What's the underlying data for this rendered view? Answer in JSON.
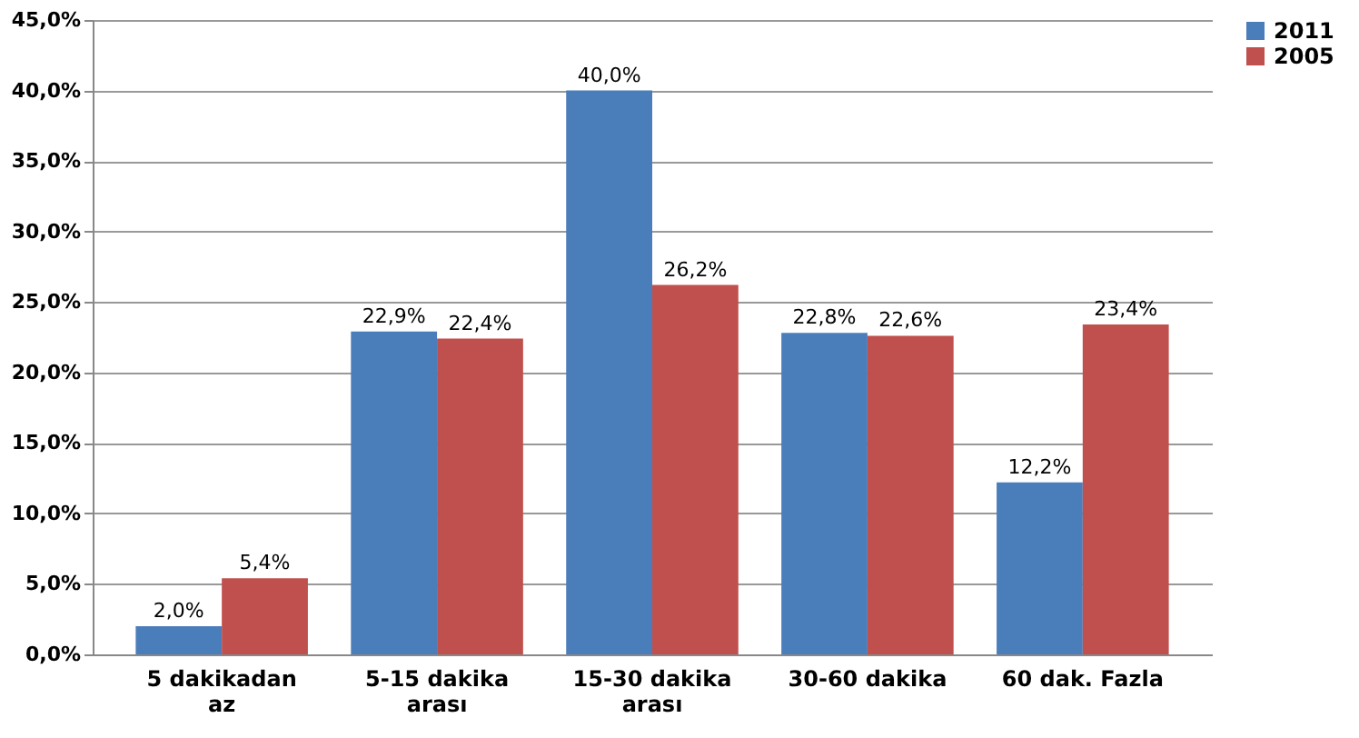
{
  "chart_data": {
    "type": "bar",
    "categories": [
      "5 dakikadan az",
      "5-15 dakika arası",
      "15-30 dakika arası",
      "30-60 dakika",
      "60 dak. Fazla"
    ],
    "series": [
      {
        "name": "2011",
        "color": "#4a7ebb",
        "values": [
          2.0,
          22.9,
          40.0,
          22.8,
          12.2
        ],
        "value_labels": [
          "2,0%",
          "22,9%",
          "40,0%",
          "22,8%",
          "12,2%"
        ]
      },
      {
        "name": "2005",
        "color": "#c0504d",
        "values": [
          5.4,
          22.4,
          26.2,
          22.6,
          23.4
        ],
        "value_labels": [
          "5,4%",
          "22,4%",
          "26,2%",
          "22,6%",
          "23,4%"
        ]
      }
    ],
    "ylim": [
      0,
      45
    ],
    "yticks": [
      {
        "value": 0,
        "label": "0,0%"
      },
      {
        "value": 5,
        "label": "5,0%"
      },
      {
        "value": 10,
        "label": "10,0%"
      },
      {
        "value": 15,
        "label": "15,0%"
      },
      {
        "value": 20,
        "label": "20,0%"
      },
      {
        "value": 25,
        "label": "25,0%"
      },
      {
        "value": 30,
        "label": "30,0%"
      },
      {
        "value": 35,
        "label": "35,0%"
      },
      {
        "value": 40,
        "label": "40,0%"
      },
      {
        "value": 45,
        "label": "45,0%"
      }
    ],
    "grid": "y",
    "legend": "right"
  }
}
